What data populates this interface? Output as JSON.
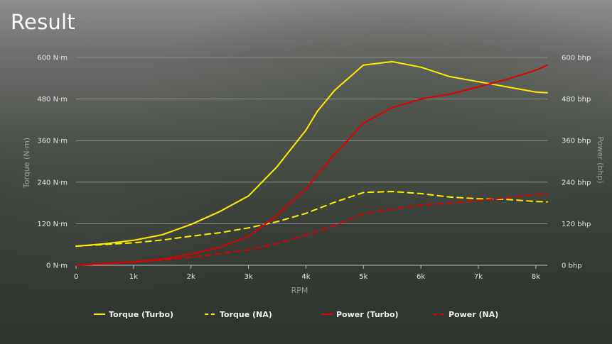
{
  "page": {
    "title": "Result"
  },
  "chart_data": {
    "type": "line",
    "xlabel": "RPM",
    "ylabel_left": "Torque (N·m)",
    "ylabel_right": "Power (bhp)",
    "xlim": [
      0,
      8200
    ],
    "ylim_left": [
      0,
      600
    ],
    "ylim_right": [
      0,
      600
    ],
    "x_ticks": [
      {
        "value": 0,
        "label": "0"
      },
      {
        "value": 1000,
        "label": "1k"
      },
      {
        "value": 2000,
        "label": "2k"
      },
      {
        "value": 3000,
        "label": "3k"
      },
      {
        "value": 4000,
        "label": "4k"
      },
      {
        "value": 5000,
        "label": "5k"
      },
      {
        "value": 6000,
        "label": "6k"
      },
      {
        "value": 7000,
        "label": "7k"
      },
      {
        "value": 8000,
        "label": "8k"
      }
    ],
    "y_ticks_left": [
      {
        "value": 0,
        "label": "0 N·m"
      },
      {
        "value": 120,
        "label": "120 N·m"
      },
      {
        "value": 240,
        "label": "240 N·m"
      },
      {
        "value": 360,
        "label": "360 N·m"
      },
      {
        "value": 480,
        "label": "480 N·m"
      },
      {
        "value": 600,
        "label": "600 N·m"
      }
    ],
    "y_ticks_right": [
      {
        "value": 0,
        "label": "0 bhp"
      },
      {
        "value": 120,
        "label": "120 bhp"
      },
      {
        "value": 240,
        "label": "240 bhp"
      },
      {
        "value": 360,
        "label": "360 bhp"
      },
      {
        "value": 480,
        "label": "480 bhp"
      },
      {
        "value": 600,
        "label": "600 bhp"
      }
    ],
    "grid": true,
    "legend_position": "bottom",
    "series": [
      {
        "name": "Torque (Turbo)",
        "color": "#ffee00",
        "dash": "solid",
        "axis": "left",
        "x": [
          0,
          500,
          1000,
          1500,
          2000,
          2500,
          3000,
          3500,
          4000,
          4200,
          4500,
          5000,
          5500,
          6000,
          6500,
          7000,
          7500,
          8000,
          8200
        ],
        "y": [
          55,
          62,
          72,
          88,
          118,
          155,
          200,
          285,
          390,
          445,
          505,
          578,
          588,
          572,
          545,
          530,
          515,
          500,
          498
        ]
      },
      {
        "name": "Torque (NA)",
        "color": "#ffee00",
        "dash": "dashed",
        "axis": "left",
        "x": [
          0,
          500,
          1000,
          1500,
          2000,
          2500,
          3000,
          3500,
          4000,
          4500,
          5000,
          5500,
          6000,
          6500,
          7000,
          7500,
          8000,
          8200
        ],
        "y": [
          55,
          60,
          65,
          73,
          84,
          94,
          108,
          126,
          150,
          182,
          210,
          213,
          207,
          197,
          192,
          190,
          184,
          183
        ]
      },
      {
        "name": "Power (Turbo)",
        "color": "#e00000",
        "dash": "solid",
        "axis": "right",
        "x": [
          0,
          500,
          1000,
          1500,
          2000,
          2500,
          3000,
          3500,
          4000,
          4200,
          4500,
          5000,
          5500,
          6000,
          6500,
          7000,
          7500,
          8000,
          8200
        ],
        "y": [
          0,
          5,
          10,
          18,
          32,
          52,
          83,
          145,
          220,
          262,
          320,
          410,
          455,
          480,
          494,
          515,
          537,
          563,
          578
        ]
      },
      {
        "name": "Power (NA)",
        "color": "#e00000",
        "dash": "dashed",
        "axis": "right",
        "x": [
          0,
          500,
          1000,
          1500,
          2000,
          2500,
          3000,
          3500,
          4000,
          4500,
          5000,
          5500,
          6000,
          6500,
          7000,
          7500,
          8000,
          8200
        ],
        "y": [
          0,
          4,
          9,
          15,
          23,
          33,
          45,
          62,
          87,
          115,
          148,
          162,
          173,
          180,
          187,
          195,
          204,
          207
        ]
      }
    ]
  }
}
